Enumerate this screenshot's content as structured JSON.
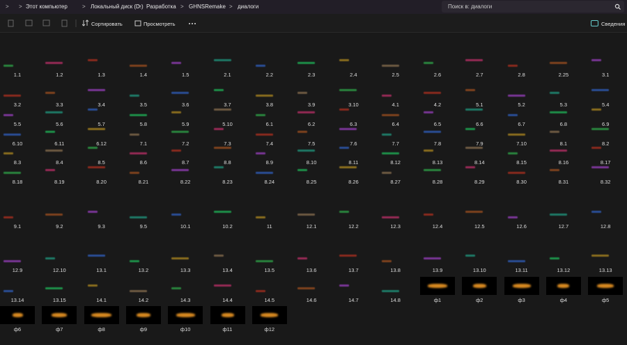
{
  "breadcrumb": [
    "Этот компьютер",
    "Локальный диск (D:)",
    "Разработка",
    "GHNSRemake",
    "диалоги"
  ],
  "search_placeholder": "Поиск в: диалоги",
  "toolbar": {
    "sort": "Сортировать",
    "view": "Просмотреть",
    "details": "Сведения"
  },
  "files": [
    "1.1",
    "1.2",
    "1.3",
    "1.4",
    "1.5",
    "2.1",
    "2.2",
    "2.3",
    "2.4",
    "2.5",
    "2.6",
    "2.7",
    "2.8",
    "2.25",
    "3.1",
    "3.2",
    "3.3",
    "3.4",
    "3.5",
    "3.6",
    "3.7",
    "3.8",
    "3.9",
    "3.10",
    "4.1",
    "4.2",
    "5.1",
    "5.2",
    "5.3",
    "5.4",
    "5.5",
    "5.6",
    "5.7",
    "5.8",
    "5.9",
    "5.10",
    "6.1",
    "6.2",
    "6.3",
    "6.4",
    "6.5",
    "6.6",
    "6.7",
    "6.8",
    "6.9",
    "6.10",
    "6.11",
    "6.12",
    "7.1",
    "7.2",
    "7.3",
    "7.4",
    "7.5",
    "7.6",
    "7.7",
    "7.8",
    "7.9",
    "7.10",
    "8.1",
    "8.2",
    "8.3",
    "8.4",
    "8.5",
    "8.6",
    "8.7",
    "8.8",
    "8.9",
    "8.10",
    "8.11",
    "8.12",
    "8.13",
    "8.14",
    "8.15",
    "8.16",
    "8.17",
    "8.18",
    "8.19",
    "8.20",
    "8.21",
    "8.22",
    "8.23",
    "8.24",
    "8.25",
    "8.26",
    "8.27",
    "8.28",
    "8.29",
    "8.30",
    "8.31",
    "8.32",
    "9.1",
    "9.2",
    "9.3",
    "9.5",
    "10.1",
    "10.2",
    "11",
    "12.1",
    "12.2",
    "12.3",
    "12.4",
    "12.5",
    "12.6",
    "12.7",
    "12.8",
    "12.9",
    "12.10",
    "13.1",
    "13.2",
    "13.3",
    "13.4",
    "13.5",
    "13.6",
    "13.7",
    "13.8",
    "13.9",
    "13.10",
    "13.11",
    "13.12",
    "13.13",
    "13.14",
    "13.15",
    "14.1",
    "14.2",
    "14.3",
    "14.4",
    "14.5",
    "14.6",
    "14.7",
    "14.8",
    "ф1",
    "ф2",
    "ф3",
    "ф4",
    "ф5",
    "ф6",
    "ф7",
    "ф8",
    "ф9",
    "ф10",
    "ф11",
    "ф12"
  ]
}
